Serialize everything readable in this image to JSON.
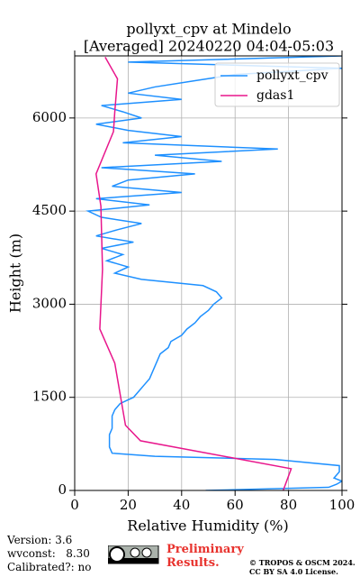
{
  "chart_data": {
    "type": "line",
    "title": "pollyxt_cpv at Mindelo",
    "subtitle": "[Averaged] 20240220 04:04-05:03",
    "x_label": "Relative Humidity (%)",
    "y_label": "Height (m)",
    "xlim": [
      0,
      100
    ],
    "ylim": [
      0,
      7000
    ],
    "xticks": [
      0,
      20,
      40,
      60,
      80,
      100
    ],
    "yticks": [
      0,
      1500,
      3000,
      4500,
      6000
    ],
    "grid": true,
    "legend": "upper right",
    "series": [
      {
        "name": "pollyxt_cpv",
        "color": "#1e90ff",
        "y": [
          0,
          50,
          100,
          150,
          200,
          300,
          400,
          500,
          550,
          600,
          700,
          800,
          900,
          1000,
          1100,
          1200,
          1300,
          1400,
          1500,
          1600,
          1700,
          1800,
          1900,
          2000,
          2100,
          2200,
          2300,
          2400,
          2500,
          2600,
          2700,
          2800,
          2900,
          3000,
          3100,
          3200,
          3300,
          3400,
          3500,
          3600,
          3700,
          3800,
          3900,
          4000,
          4100,
          4200,
          4300,
          4400,
          4500,
          4600,
          4700,
          4800,
          4900,
          5000,
          5100,
          5200,
          5300,
          5400,
          5500,
          5600,
          5700,
          5800,
          5900,
          6000,
          6100,
          6200,
          6300,
          6400,
          6500,
          6600,
          6700,
          6800,
          6900,
          7000
        ],
        "values": [
          49,
          95,
          98,
          100,
          97,
          99,
          99,
          75,
          30,
          14,
          13,
          13,
          13,
          14,
          14,
          14,
          15,
          17,
          22,
          24,
          26,
          28,
          29,
          30,
          31,
          32,
          35,
          36,
          40,
          42,
          45,
          47,
          50,
          52,
          55,
          53,
          48,
          25,
          15,
          20,
          12,
          18,
          10,
          22,
          8,
          16,
          25,
          10,
          5,
          28,
          8,
          40,
          14,
          20,
          45,
          10,
          55,
          30,
          76,
          18,
          40,
          20,
          8,
          25,
          18,
          10,
          40,
          20,
          30,
          45,
          60,
          100,
          20,
          100
        ]
      },
      {
        "name": "gdas1",
        "color": "#e8168c",
        "y": [
          0,
          350,
          800,
          1050,
          2050,
          2600,
          3560,
          4580,
          5100,
          5780,
          6100,
          6630,
          6980
        ],
        "values": [
          78,
          81,
          24.6,
          19,
          15,
          9.4,
          10.4,
          9.8,
          8,
          14.5,
          15,
          16,
          11.4
        ]
      }
    ]
  },
  "footer": {
    "version": "Version: 3.6",
    "wvconst": "wvconst:   8.30",
    "calibrated": "Calibrated?: no",
    "preliminary": "Preliminary Results.",
    "copyright": "© TROPOS & OSCM 2024.",
    "license": "CC BY SA 4.0 License."
  }
}
